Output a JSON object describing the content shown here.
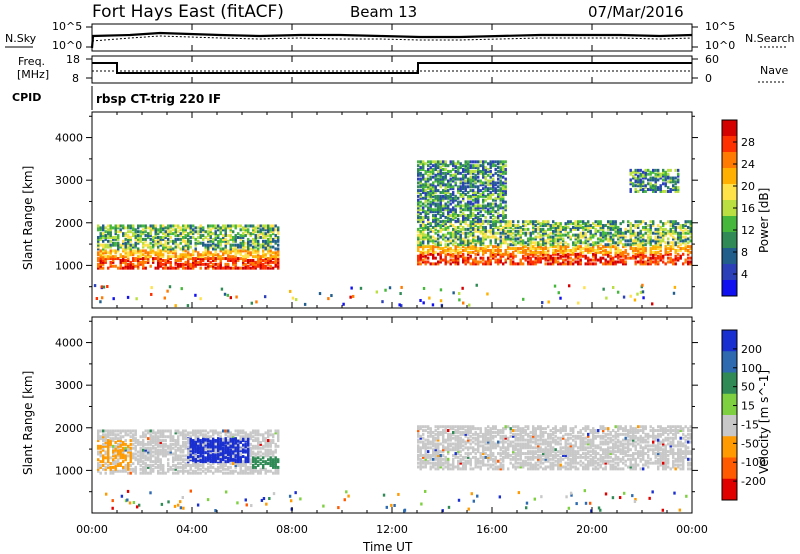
{
  "header": {
    "station": "Fort Hays East (fitACF)",
    "beam": "Beam 13",
    "date": "07/Mar/2016"
  },
  "noise_panel": {
    "left_label": "N.Sky",
    "right_label": "N.Search",
    "left_ticks": [
      "10^5",
      "10^0"
    ],
    "right_ticks": [
      "10^5",
      "10^0"
    ]
  },
  "freq_panel": {
    "left_label_line1": "Freq.",
    "left_label_line2": "[MHz]",
    "right_label": "Nave",
    "left_ticks": [
      "18",
      "8"
    ],
    "right_ticks": [
      "60",
      "0"
    ]
  },
  "cpid": {
    "label": "CPID",
    "text": "rbsp CT-trig 220 IF"
  },
  "axes": {
    "ylabel": "Slant Range [km]",
    "xlabel": "Time UT",
    "y_ticks": [
      "1000",
      "2000",
      "3000",
      "4000"
    ],
    "x_ticks": [
      "00:00",
      "04:00",
      "08:00",
      "12:00",
      "16:00",
      "20:00",
      "00:00"
    ]
  },
  "chart_data": [
    {
      "type": "heatmap",
      "name": "power",
      "x_unit": "hours UT",
      "x_range": [
        0,
        24
      ],
      "y_range": [
        0,
        4600
      ],
      "colorbar_label": "Power [dB]",
      "colorbar_ticks": [
        "28",
        "24",
        "20",
        "16",
        "12",
        "8",
        "4"
      ],
      "colorbar_colors": [
        "#d40000",
        "#ff3000",
        "#ff7a00",
        "#ffb000",
        "#ffe24a",
        "#b9e040",
        "#45b83c",
        "#2f8a55",
        "#225e8c",
        "#2a3fb8",
        "#1010f0"
      ],
      "regions": [
        {
          "t0": 0.2,
          "t1": 7.4,
          "r0": 900,
          "r1": 1900,
          "level": "mixed"
        },
        {
          "t0": 13.0,
          "t1": 24.0,
          "r0": 1000,
          "r1": 2000,
          "level": "mixed"
        },
        {
          "t0": 13.0,
          "t1": 16.5,
          "r0": 2000,
          "r1": 3400,
          "level": "weak"
        },
        {
          "t0": 21.5,
          "t1": 23.5,
          "r0": 2700,
          "r1": 3200,
          "level": "weak"
        }
      ]
    },
    {
      "type": "heatmap",
      "name": "velocity",
      "x_unit": "hours UT",
      "x_range": [
        0,
        24
      ],
      "y_range": [
        0,
        4600
      ],
      "colorbar_label": "Velocity [m s^-1]",
      "colorbar_ticks": [
        "200",
        "100",
        "50",
        "15",
        "-15",
        "-50",
        "-100",
        "-200"
      ],
      "colorbar_colors": [
        "#1a2fd0",
        "#2e6ab0",
        "#2f8a55",
        "#7ed040",
        "#c8c8c8",
        "#ff9a00",
        "#ff5a00",
        "#e00000"
      ],
      "regions": [
        {
          "t0": 0.2,
          "t1": 7.4,
          "r0": 900,
          "r1": 1900,
          "level": "mixed"
        },
        {
          "t0": 3.8,
          "t1": 6.2,
          "r0": 1200,
          "r1": 1700,
          "level": "positive"
        },
        {
          "t0": 13.0,
          "t1": 24.0,
          "r0": 1000,
          "r1": 2000,
          "level": "near-zero"
        }
      ]
    }
  ]
}
